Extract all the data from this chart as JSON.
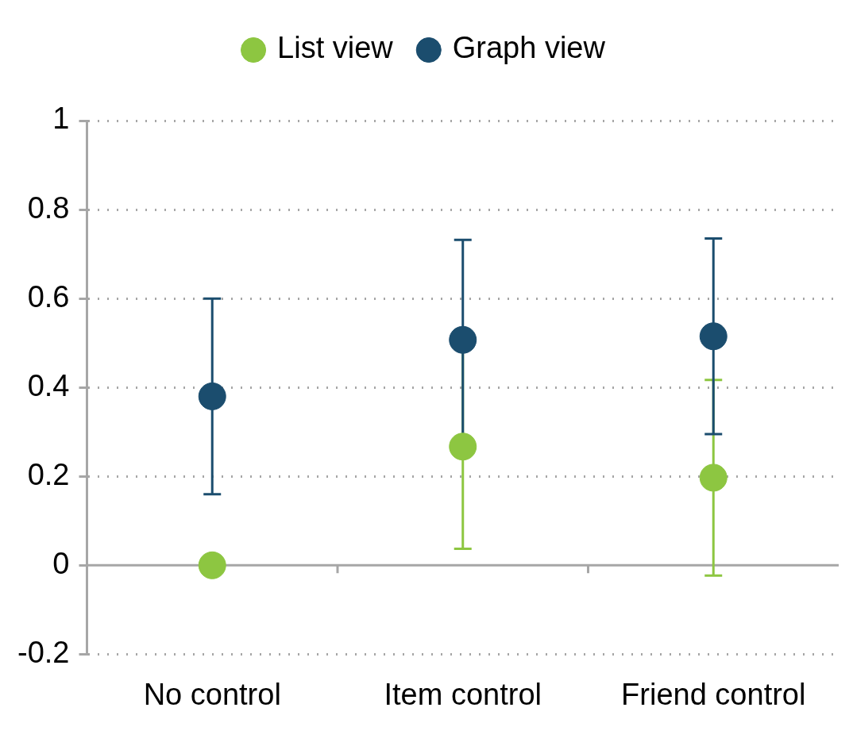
{
  "chart_data": {
    "type": "scatter",
    "categories": [
      "No control",
      "Item control",
      "Friend control"
    ],
    "series": [
      {
        "name": "List view",
        "color": "#8dc641",
        "values": [
          0,
          0.267,
          0.197
        ],
        "errors": [
          null,
          0.23,
          0.22
        ]
      },
      {
        "name": "Graph view",
        "color": "#1b4d6e",
        "values": [
          0.38,
          0.507,
          0.515
        ],
        "errors": [
          0.22,
          0.225,
          0.22
        ]
      }
    ],
    "ylim": [
      -0.2,
      1
    ],
    "yticks": [
      -0.2,
      0,
      0.2,
      0.4,
      0.6,
      0.8,
      1
    ],
    "grid": "y",
    "legend": "top",
    "marker": "circle"
  }
}
